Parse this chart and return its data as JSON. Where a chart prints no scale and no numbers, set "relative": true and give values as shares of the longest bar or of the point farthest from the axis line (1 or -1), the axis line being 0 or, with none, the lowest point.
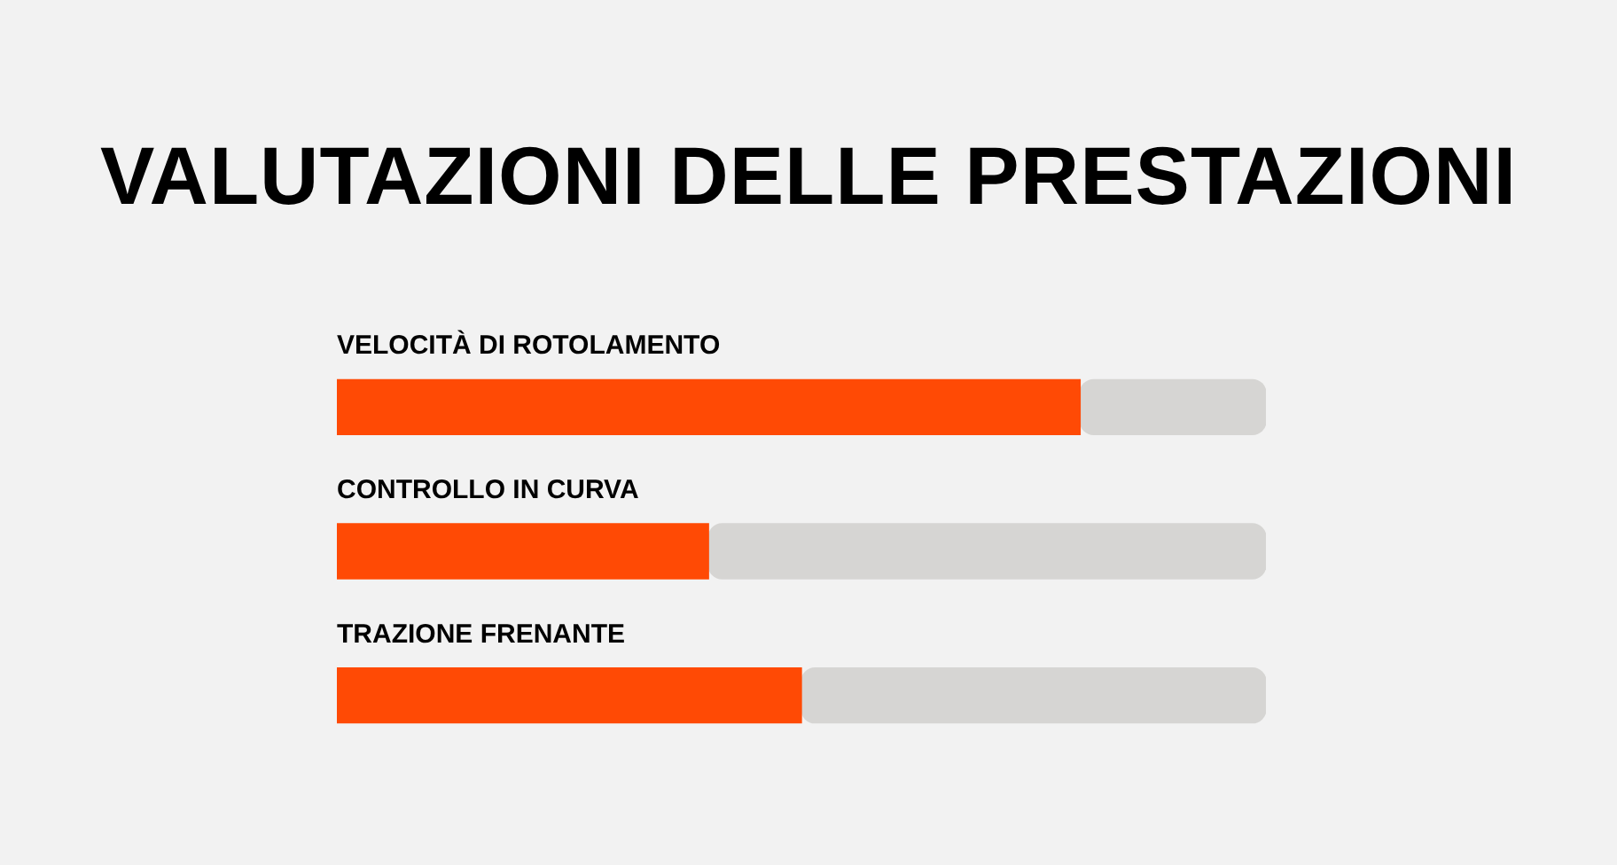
{
  "chart_data": {
    "type": "bar",
    "title": "VALUTAZIONI DELLE PRESTAZIONI",
    "orientation": "horizontal",
    "stacked": true,
    "relative": true,
    "categories": [
      "VELOCITÀ DI ROTOLAMENTO",
      "CONTROLLO IN CURVA",
      "TRAZIONE FRENANTE"
    ],
    "series": [
      {
        "color": "#ff4a05",
        "values": [
          0.8,
          0.4,
          0.5
        ]
      },
      {
        "color": "#d6d5d3",
        "values": [
          0.2,
          0.6,
          0.5
        ]
      }
    ]
  }
}
